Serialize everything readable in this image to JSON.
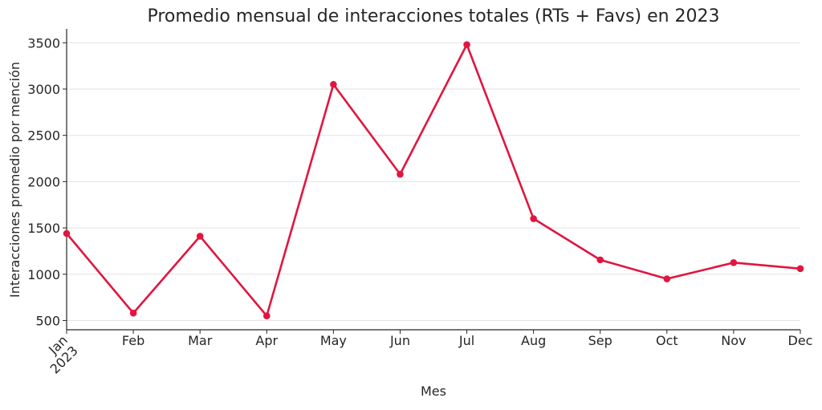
{
  "chart_data": {
    "type": "line",
    "title": "Promedio mensual de interacciones totales (RTs + Favs) en 2023",
    "xlabel": "Mes",
    "ylabel": "Interacciones promedio por mención",
    "categories": [
      "Jan\n2023",
      "Feb",
      "Mar",
      "Apr",
      "May",
      "Jun",
      "Jul",
      "Aug",
      "Sep",
      "Oct",
      "Nov",
      "Dec"
    ],
    "series": [
      {
        "values": [
          1440,
          580,
          1410,
          550,
          3050,
          2080,
          3480,
          1600,
          1155,
          950,
          1125,
          1060
        ]
      }
    ],
    "ylim": [
      400,
      3650
    ],
    "yticks": [
      500,
      1000,
      1500,
      2000,
      2500,
      3000,
      3500
    ],
    "grid": "horizontal",
    "colors": {
      "line": "#e0163f",
      "grid": "#e3e3e3",
      "axis": "#262626"
    }
  }
}
